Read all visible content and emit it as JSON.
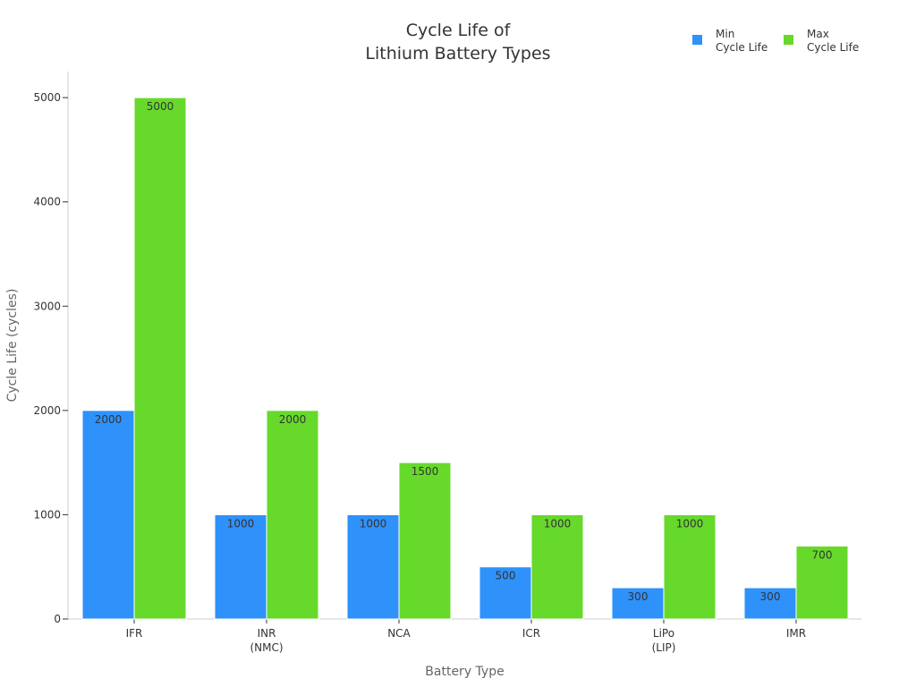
{
  "chart_data": {
    "type": "bar",
    "title_lines": [
      "Cycle Life of",
      "Lithium Battery Types"
    ],
    "xlabel": "Battery Type",
    "ylabel": "Cycle Life (cycles)",
    "ylim": [
      0,
      5250
    ],
    "yticks": [
      0,
      1000,
      2000,
      3000,
      4000,
      5000
    ],
    "categories": [
      [
        "IFR"
      ],
      [
        "INR",
        "(NMC)"
      ],
      [
        "NCA"
      ],
      [
        "ICR"
      ],
      [
        "LiPo",
        "(LIP)"
      ],
      [
        "IMR"
      ]
    ],
    "series": [
      {
        "name_lines": [
          "Min",
          "Cycle Life"
        ],
        "color": "#2f91fa",
        "values": [
          2000,
          1000,
          1000,
          500,
          300,
          300
        ]
      },
      {
        "name_lines": [
          "Max",
          "Cycle Life"
        ],
        "color": "#66d92b",
        "values": [
          5000,
          2000,
          1500,
          1000,
          1000,
          700
        ]
      }
    ],
    "legend_position": "top-right",
    "grid": false
  }
}
